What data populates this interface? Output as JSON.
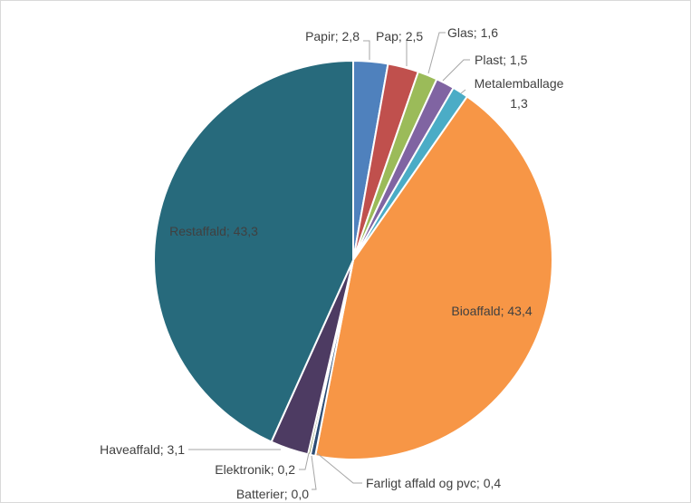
{
  "chart_data": {
    "type": "pie",
    "title": "",
    "slices": [
      {
        "label": "Papir; 2,8",
        "name": "Papir",
        "value": 2.8,
        "color": "#4f81bd"
      },
      {
        "label": "Pap; 2,5",
        "name": "Pap",
        "value": 2.5,
        "color": "#c0504d"
      },
      {
        "label": "Glas; 1,6",
        "name": "Glas",
        "value": 1.6,
        "color": "#9bbb59"
      },
      {
        "label": "Plast; 1,5",
        "name": "Plast",
        "value": 1.5,
        "color": "#8064a2"
      },
      {
        "label": "Metalemballage; 1,3",
        "name": "Metalemballage",
        "value": 1.3,
        "color": "#4bacc6"
      },
      {
        "label": "Bioaffald; 43,4",
        "name": "Bioaffald",
        "value": 43.4,
        "color": "#f79646"
      },
      {
        "label": "Farligt affald og pvc; 0,4",
        "name": "Farligt affald og pvc",
        "value": 0.4,
        "color": "#2c4d75"
      },
      {
        "label": "Batterier; 0,0",
        "name": "Batterier",
        "value": 0.0,
        "color": "#772c2a"
      },
      {
        "label": "Elektronik; 0,2",
        "name": "Elektronik",
        "value": 0.2,
        "color": "#5f7530"
      },
      {
        "label": "Haveaffald; 3,1",
        "name": "Haveaffald",
        "value": 3.1,
        "color": "#4d3b62"
      },
      {
        "label": "Restaffald; 43,3",
        "name": "Restaffald",
        "value": 43.3,
        "color": "#276a7c"
      }
    ]
  }
}
